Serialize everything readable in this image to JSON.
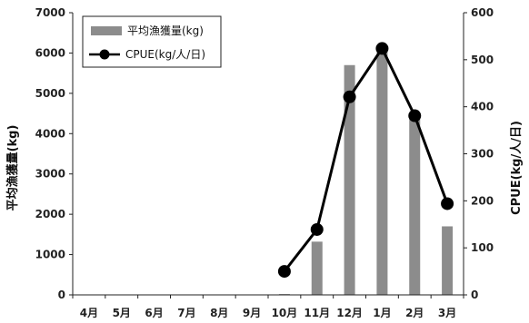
{
  "chart_data": {
    "type": "bar+line",
    "categories": [
      "4月",
      "5月",
      "6月",
      "7月",
      "8月",
      "9月",
      "10月",
      "11月",
      "12月",
      "1月",
      "2月",
      "3月"
    ],
    "series": [
      {
        "name": "平均漁獲量(kg)",
        "type": "bar",
        "axis": "left",
        "color": "#8c8c8c",
        "values": [
          null,
          null,
          null,
          null,
          null,
          null,
          20,
          1320,
          5700,
          6050,
          4500,
          1700
        ]
      },
      {
        "name": "CPUE(kg/人/日)",
        "type": "line",
        "axis": "right",
        "color": "#000000",
        "values": [
          null,
          null,
          null,
          null,
          null,
          null,
          50,
          139,
          421,
          524,
          381,
          194
        ]
      }
    ],
    "y_left": {
      "label": "平均漁獲量(kg)",
      "range": [
        0,
        7000
      ],
      "ticks": [
        "0",
        "1000",
        "2000",
        "3000",
        "4000",
        "5000",
        "6000",
        "7000"
      ]
    },
    "y_right": {
      "label": "CPUE(kg/人/日)",
      "range": [
        0,
        600
      ],
      "ticks": [
        "0",
        "100",
        "200",
        "300",
        "400",
        "500",
        "600"
      ]
    },
    "grid": false,
    "legend_position": "top-left"
  }
}
